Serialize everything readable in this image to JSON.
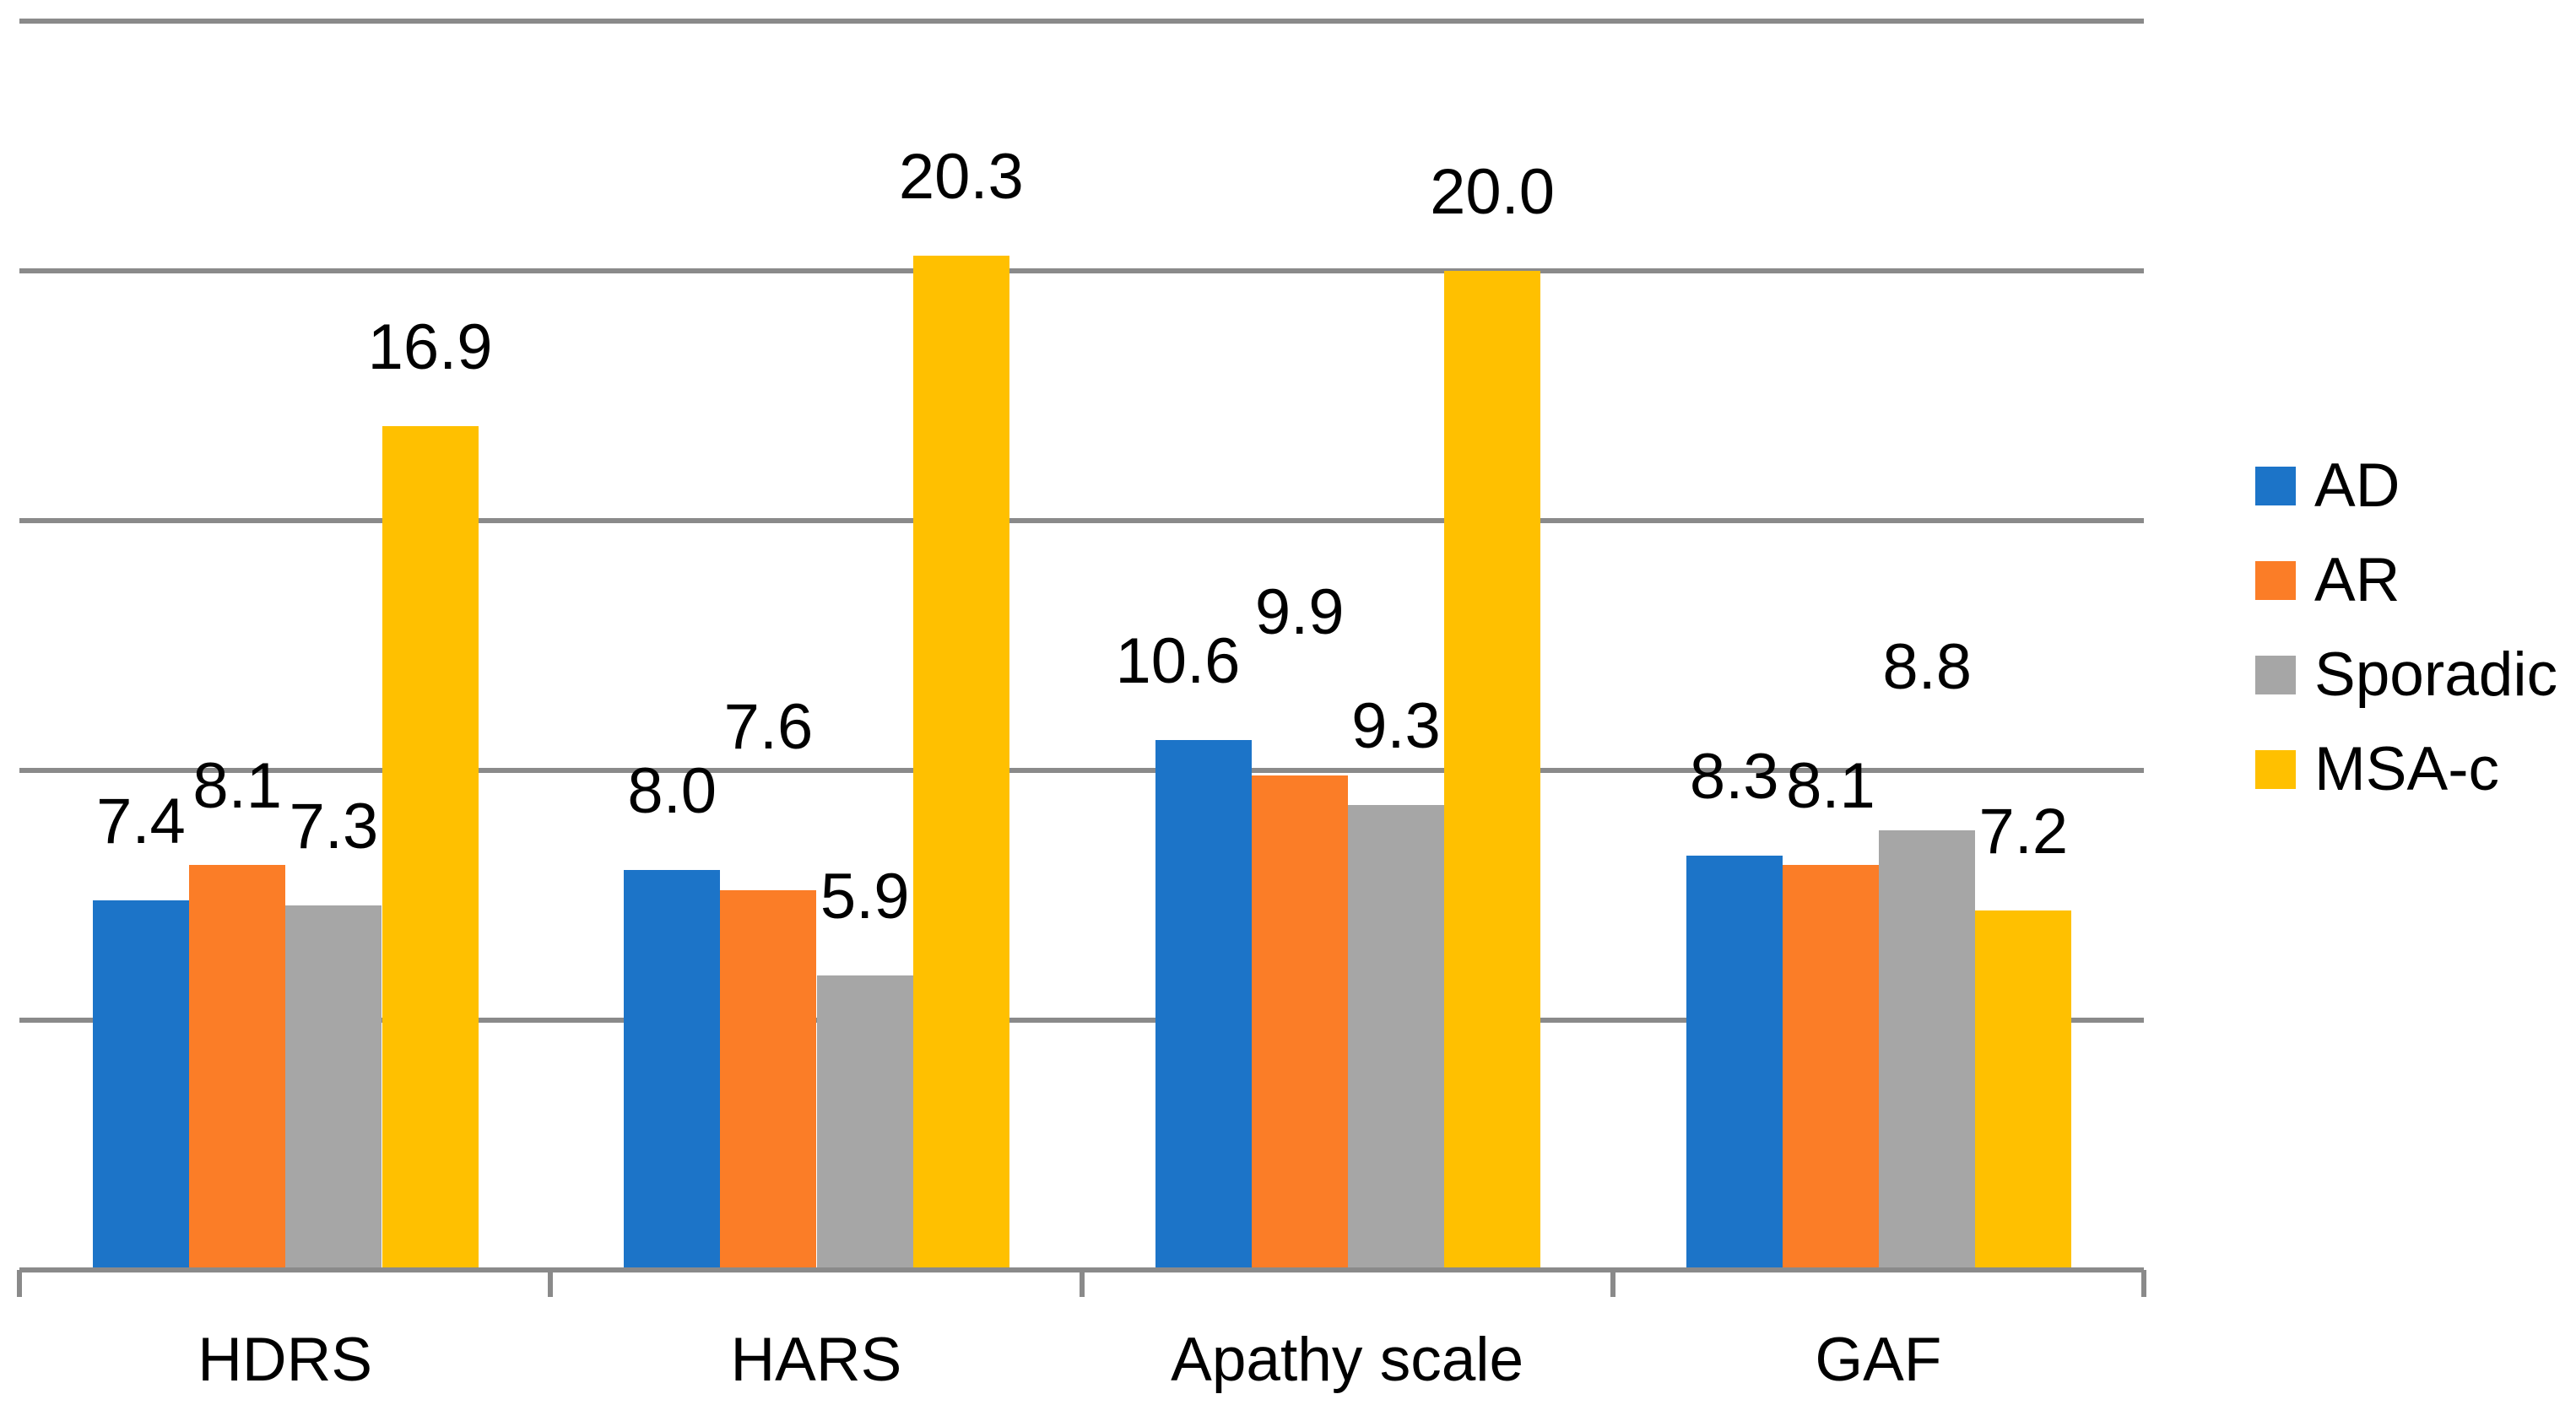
{
  "chart_data": {
    "type": "bar",
    "title": "",
    "xlabel": "",
    "ylabel": "",
    "categories": [
      "HDRS",
      "HARS",
      "Apathy scale",
      "GAF"
    ],
    "series": [
      {
        "name": "AD",
        "color": "#1c74c8",
        "values": [
          7.4,
          8.0,
          10.6,
          8.3
        ]
      },
      {
        "name": "AR",
        "color": "#fb7d27",
        "values": [
          8.1,
          7.6,
          9.9,
          8.1
        ]
      },
      {
        "name": "Sporadic",
        "color": "#a6a6a6",
        "values": [
          7.3,
          5.9,
          9.3,
          8.8
        ]
      },
      {
        "name": "MSA-c",
        "color": "#ffc000",
        "values": [
          16.9,
          20.3,
          20.0,
          7.2
        ]
      }
    ],
    "data_labels": [
      [
        "7.4",
        "8.0",
        "10.6",
        "8.3"
      ],
      [
        "8.1",
        "7.6",
        "9.9",
        "8.1"
      ],
      [
        "7.3",
        "5.9",
        "9.3",
        "8.8"
      ],
      [
        "16.9",
        "20.3",
        "20.0",
        "7.2"
      ]
    ],
    "ylim": [
      0,
      25
    ],
    "gridline_step": 5,
    "y_axis_labels_visible": false,
    "grid": "horizontal",
    "gridline_color": "#8a8a8a",
    "legend_position": "right",
    "background_color": "#ffffff",
    "text_color": "#000000"
  }
}
